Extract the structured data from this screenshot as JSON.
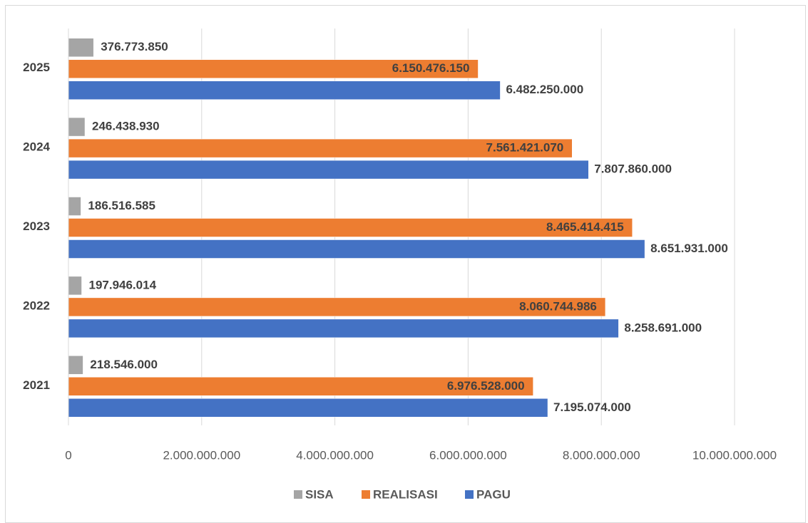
{
  "chart_data": {
    "type": "hbar",
    "categories": [
      "2021",
      "2022",
      "2023",
      "2024",
      "2025"
    ],
    "series": [
      {
        "name": "SISA",
        "color": "#a5a5a5",
        "values": [
          218546000,
          197946014,
          186516585,
          246438930,
          376773850
        ],
        "value_labels": [
          "218.546.000",
          "197.946.014",
          "186.516.585",
          "246.438.930",
          "376.773.850"
        ]
      },
      {
        "name": "REALISASI",
        "color": "#ed7d31",
        "values": [
          6976528000,
          8060744986,
          8465414415,
          7561421070,
          6150476150
        ],
        "value_labels": [
          "6.976.528.000",
          "8.060.744.986",
          "8.465.414.415",
          "7.561.421.070",
          "6.150.476.150"
        ]
      },
      {
        "name": "PAGU",
        "color": "#4472c4",
        "values": [
          7195074000,
          8258691000,
          8651931000,
          7807860000,
          6482250000
        ],
        "value_labels": [
          "7.195.074.000",
          "8.258.691.000",
          "8.651.931.000",
          "7.807.860.000",
          "6.482.250.000"
        ]
      }
    ],
    "xlim": [
      0,
      10000000000
    ],
    "xticks": [
      0,
      {
        "value": 2000000000,
        "label": "2.000.000.000"
      },
      {
        "value": 4000000000,
        "label": "4.000.000.000"
      },
      {
        "value": 6000000000,
        "label": "6.000.000.000"
      },
      {
        "value": 8000000000,
        "label": "8.000.000.000"
      },
      {
        "value": 10000000000,
        "label": "10.000.000.000"
      }
    ],
    "grid": true,
    "legend": "bottom"
  }
}
